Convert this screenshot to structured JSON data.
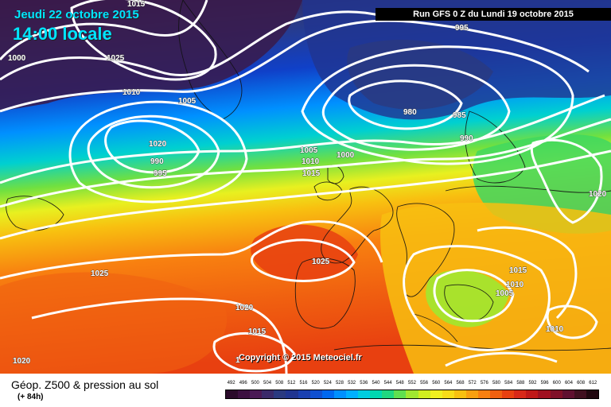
{
  "header": {
    "date": "Jeudi 22 octobre 2015",
    "time": "14:00 locale",
    "run": "Run GFS 0 Z du Lundi 19 octobre 2015"
  },
  "copyright": "Copyright © 2015 Meteociel.fr",
  "isobars": [
    {
      "text": "1015"
    },
    {
      "text": "995"
    },
    {
      "text": "1000"
    },
    {
      "text": "1025"
    },
    {
      "text": "1010"
    },
    {
      "text": "1005"
    },
    {
      "text": "1020"
    },
    {
      "text": "990"
    },
    {
      "text": "995"
    },
    {
      "text": "980"
    },
    {
      "text": "985"
    },
    {
      "text": "990"
    },
    {
      "text": "1005"
    },
    {
      "text": "1000"
    },
    {
      "text": "1010"
    },
    {
      "text": "1015"
    },
    {
      "text": "1020"
    },
    {
      "text": "1025"
    },
    {
      "text": "1025"
    },
    {
      "text": "1015"
    },
    {
      "text": "1010"
    },
    {
      "text": "1005"
    },
    {
      "text": "1020"
    },
    {
      "text": "1015"
    },
    {
      "text": "1010"
    },
    {
      "text": "1020"
    },
    {
      "text": "1"
    }
  ],
  "legend": {
    "title": "Géop. Z500 & pression au sol",
    "subtitle": "(+ 84h)",
    "values": [
      "492",
      "496",
      "500",
      "504",
      "508",
      "512",
      "516",
      "520",
      "524",
      "528",
      "532",
      "536",
      "540",
      "544",
      "548",
      "552",
      "556",
      "560",
      "564",
      "568",
      "572",
      "576",
      "580",
      "584",
      "588",
      "592",
      "596",
      "600",
      "604",
      "608",
      "612"
    ],
    "colors": [
      "#2a0a2a",
      "#3c1040",
      "#4a1a55",
      "#3a2a6a",
      "#2a3a80",
      "#203590",
      "#1a40b0",
      "#1050d0",
      "#0068f0",
      "#0090ff",
      "#00b0ff",
      "#00cde0",
      "#00d8b0",
      "#20d880",
      "#60e050",
      "#a0e830",
      "#d0ee20",
      "#f0f020",
      "#f8dc18",
      "#f8c010",
      "#f8a010",
      "#f88010",
      "#f06010",
      "#e84010",
      "#d82818",
      "#c01818",
      "#a01020",
      "#801028",
      "#601030",
      "#401020",
      "#200810"
    ]
  }
}
